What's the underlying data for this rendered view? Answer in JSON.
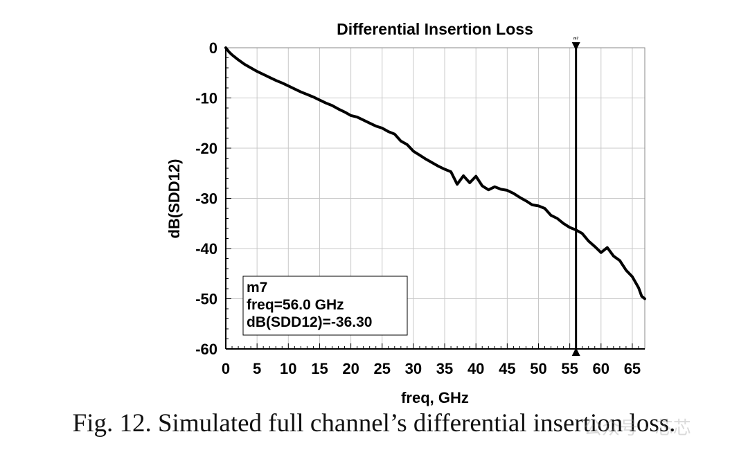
{
  "chart_data": {
    "type": "line",
    "title": "Differential Insertion Loss",
    "xlabel": "freq, GHz",
    "ylabel": "dB(SDD12)",
    "xlim": [
      0,
      67
    ],
    "ylim": [
      -60,
      0
    ],
    "xticks": [
      0,
      5,
      10,
      15,
      20,
      25,
      30,
      35,
      40,
      45,
      50,
      55,
      60,
      65
    ],
    "yticks": [
      0,
      -10,
      -20,
      -30,
      -40,
      -50,
      -60
    ],
    "grid": true,
    "series": [
      {
        "color": "#000000",
        "x": [
          0,
          0.5,
          1,
          2,
          3,
          4,
          5,
          6,
          7,
          8,
          9,
          10,
          11,
          12,
          13,
          14,
          15,
          16,
          17,
          18,
          19,
          20,
          21,
          22,
          23,
          24,
          25,
          26,
          27,
          28,
          29,
          30,
          31,
          32,
          33,
          34,
          35,
          36,
          37,
          38,
          39,
          40,
          41,
          42,
          43,
          44,
          45,
          46,
          47,
          48,
          49,
          50,
          51,
          52,
          53,
          54,
          55,
          56,
          57,
          58,
          59,
          60,
          61,
          62,
          63,
          64,
          65,
          66,
          66.5,
          67
        ],
        "y": [
          0,
          -0.8,
          -1.4,
          -2.4,
          -3.3,
          -4.0,
          -4.7,
          -5.3,
          -5.9,
          -6.5,
          -7.0,
          -7.6,
          -8.2,
          -8.8,
          -9.3,
          -9.8,
          -10.4,
          -11.0,
          -11.5,
          -12.2,
          -12.8,
          -13.5,
          -13.8,
          -14.4,
          -15.0,
          -15.6,
          -16.0,
          -16.7,
          -17.2,
          -18.6,
          -19.3,
          -20.6,
          -21.4,
          -22.2,
          -22.9,
          -23.6,
          -24.2,
          -24.7,
          -27.2,
          -25.5,
          -26.9,
          -25.6,
          -27.5,
          -28.3,
          -27.7,
          -28.2,
          -28.4,
          -29.0,
          -29.8,
          -30.5,
          -31.3,
          -31.5,
          -32.0,
          -33.4,
          -34.0,
          -35.0,
          -35.8,
          -36.3,
          -37.0,
          -38.5,
          -39.6,
          -40.8,
          -39.8,
          -41.5,
          -42.4,
          -44.3,
          -45.6,
          -47.8,
          -49.5,
          -50.0
        ]
      }
    ],
    "marker": {
      "name": "m7",
      "x": 56.0,
      "label_lines": [
        "m7",
        "freq=56.0 GHz",
        "dB(SDD12)=-36.30"
      ]
    }
  },
  "caption": "Fig. 12. Simulated full channel’s differential insertion loss.",
  "watermark": "公众号 · 芯芯"
}
